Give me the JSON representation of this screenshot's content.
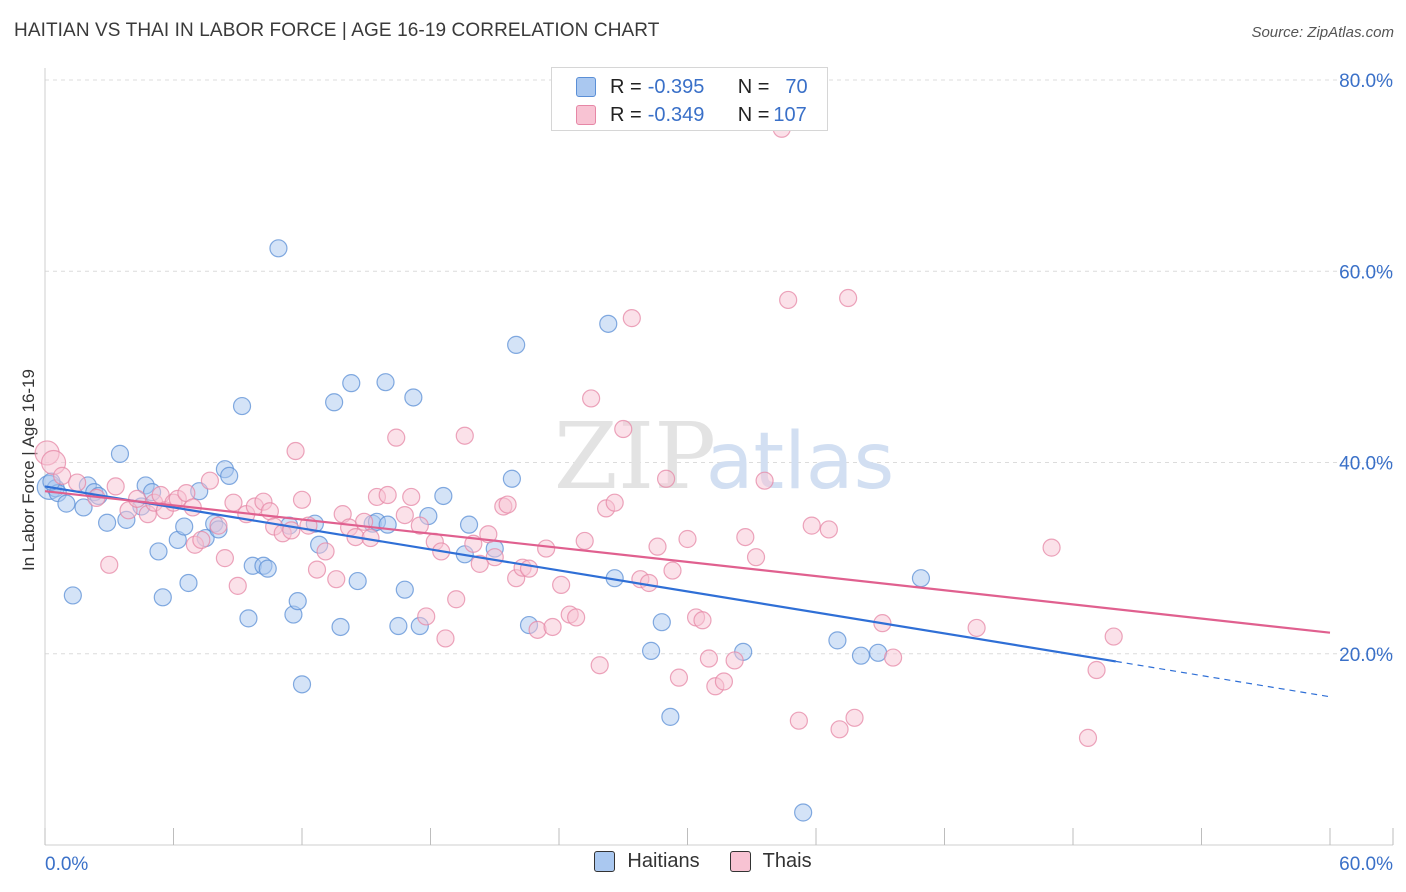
{
  "header": {
    "title": "HAITIAN VS THAI IN LABOR FORCE | AGE 16-19 CORRELATION CHART",
    "source": "Source: ZipAtlas.com"
  },
  "watermark": {
    "part1": "ZIP",
    "part2": "atlas"
  },
  "stats": {
    "rows": [
      {
        "r_label": "R = ",
        "r_value": "-0.395",
        "n_label": "N = ",
        "n_value": "70"
      },
      {
        "r_label": "R = ",
        "r_value": "-0.349",
        "n_label": "N = ",
        "n_value": "107"
      }
    ]
  },
  "legend": {
    "haitians": "Haitians",
    "thais": "Thais"
  },
  "colors": {
    "haitians_fill": "#aac8f0",
    "haitians_stroke": "#5b8fd6",
    "haitians_line": "#2f6fd6",
    "thais_fill": "#f8c3d3",
    "thais_stroke": "#e687a6",
    "thais_line": "#e0608f",
    "tick_label": "#3a70c8",
    "grid": "#dcdcdc"
  },
  "chart_data": {
    "type": "scatter",
    "title": "HAITIAN VS THAI IN LABOR FORCE | AGE 16-19 CORRELATION CHART",
    "xlabel": "",
    "ylabel": "In Labor Force | Age 16-19",
    "xlim": [
      0,
      60
    ],
    "ylim": [
      0,
      80
    ],
    "x_tick_labels": [
      "0.0%",
      "60.0%"
    ],
    "y_tick_labels": [
      "20.0%",
      "40.0%",
      "60.0%",
      "80.0%"
    ],
    "y_ticks": [
      20,
      40,
      60,
      80
    ],
    "series": [
      {
        "name": "Haitians",
        "r": -0.395,
        "n": 70,
        "trend": {
          "x_start": 0,
          "y_start": 37.5,
          "x_end": 50,
          "y_end": 19.2,
          "dashed_to_x": 60,
          "dashed_to_y": 15.5
        },
        "points": [
          [
            0.2,
            37.4
          ],
          [
            0.5,
            37.3
          ],
          [
            0.6,
            36.8
          ],
          [
            1.0,
            35.7
          ],
          [
            1.3,
            26.1
          ],
          [
            1.8,
            35.3
          ],
          [
            2.0,
            37.6
          ],
          [
            2.3,
            36.9
          ],
          [
            2.9,
            33.7
          ],
          [
            3.5,
            40.9
          ],
          [
            3.8,
            34.0
          ],
          [
            4.5,
            35.4
          ],
          [
            4.7,
            37.6
          ],
          [
            5.0,
            36.9
          ],
          [
            5.3,
            30.7
          ],
          [
            5.5,
            25.9
          ],
          [
            6.2,
            31.9
          ],
          [
            6.5,
            33.3
          ],
          [
            6.7,
            27.4
          ],
          [
            7.2,
            37.0
          ],
          [
            7.5,
            32.1
          ],
          [
            7.9,
            33.6
          ],
          [
            8.1,
            33.0
          ],
          [
            8.4,
            39.3
          ],
          [
            8.6,
            38.6
          ],
          [
            9.2,
            45.9
          ],
          [
            9.5,
            23.7
          ],
          [
            9.7,
            29.2
          ],
          [
            10.2,
            29.2
          ],
          [
            10.4,
            28.9
          ],
          [
            10.9,
            62.4
          ],
          [
            11.4,
            33.4
          ],
          [
            11.6,
            24.1
          ],
          [
            11.8,
            25.5
          ],
          [
            12.0,
            16.8
          ],
          [
            12.6,
            33.6
          ],
          [
            12.8,
            31.4
          ],
          [
            13.5,
            46.3
          ],
          [
            13.8,
            22.8
          ],
          [
            14.3,
            48.3
          ],
          [
            14.6,
            27.6
          ],
          [
            15.3,
            33.6
          ],
          [
            15.5,
            33.8
          ],
          [
            16.0,
            33.5
          ],
          [
            15.9,
            48.4
          ],
          [
            16.5,
            22.9
          ],
          [
            16.8,
            26.7
          ],
          [
            17.2,
            46.8
          ],
          [
            17.5,
            22.9
          ],
          [
            17.9,
            34.4
          ],
          [
            18.6,
            36.5
          ],
          [
            19.6,
            30.4
          ],
          [
            19.8,
            33.5
          ],
          [
            21.0,
            31.0
          ],
          [
            21.8,
            38.3
          ],
          [
            22.0,
            52.3
          ],
          [
            22.6,
            23.0
          ],
          [
            26.3,
            54.5
          ],
          [
            26.6,
            27.9
          ],
          [
            28.3,
            20.3
          ],
          [
            28.8,
            23.3
          ],
          [
            29.2,
            13.4
          ],
          [
            32.6,
            20.2
          ],
          [
            35.4,
            3.4
          ],
          [
            37.0,
            21.4
          ],
          [
            38.1,
            19.8
          ],
          [
            38.9,
            20.1
          ],
          [
            40.9,
            27.9
          ],
          [
            0.3,
            38.0
          ],
          [
            2.5,
            36.5
          ]
        ]
      },
      {
        "name": "Thais",
        "r": -0.349,
        "n": 107,
        "trend": {
          "x_start": 0,
          "y_start": 37.0,
          "x_end": 60,
          "y_end": 22.2
        },
        "points": [
          [
            0.1,
            41.0
          ],
          [
            0.4,
            40.0
          ],
          [
            0.8,
            38.6
          ],
          [
            1.5,
            37.9
          ],
          [
            2.4,
            36.3
          ],
          [
            3.0,
            29.3
          ],
          [
            3.3,
            37.5
          ],
          [
            3.9,
            35.0
          ],
          [
            4.3,
            36.2
          ],
          [
            4.8,
            34.6
          ],
          [
            5.1,
            35.8
          ],
          [
            5.4,
            36.6
          ],
          [
            5.6,
            35.0
          ],
          [
            6.0,
            35.8
          ],
          [
            6.2,
            36.2
          ],
          [
            6.6,
            36.8
          ],
          [
            6.9,
            35.3
          ],
          [
            7.0,
            31.4
          ],
          [
            7.3,
            31.9
          ],
          [
            7.7,
            38.1
          ],
          [
            8.1,
            33.4
          ],
          [
            8.4,
            30.0
          ],
          [
            8.8,
            35.8
          ],
          [
            9.0,
            27.1
          ],
          [
            9.4,
            34.6
          ],
          [
            9.8,
            35.4
          ],
          [
            10.2,
            35.9
          ],
          [
            10.5,
            34.9
          ],
          [
            10.7,
            33.3
          ],
          [
            11.1,
            32.6
          ],
          [
            11.5,
            32.9
          ],
          [
            11.7,
            41.2
          ],
          [
            12.0,
            36.1
          ],
          [
            12.3,
            33.4
          ],
          [
            12.7,
            28.8
          ],
          [
            13.1,
            30.7
          ],
          [
            13.6,
            27.8
          ],
          [
            13.9,
            34.6
          ],
          [
            14.2,
            33.2
          ],
          [
            14.5,
            32.2
          ],
          [
            14.9,
            33.8
          ],
          [
            15.2,
            32.1
          ],
          [
            15.5,
            36.4
          ],
          [
            16.0,
            36.6
          ],
          [
            16.4,
            42.6
          ],
          [
            16.8,
            34.5
          ],
          [
            17.1,
            36.4
          ],
          [
            17.5,
            33.4
          ],
          [
            17.8,
            23.9
          ],
          [
            18.2,
            31.7
          ],
          [
            18.5,
            30.7
          ],
          [
            18.7,
            21.6
          ],
          [
            19.2,
            25.7
          ],
          [
            19.6,
            42.8
          ],
          [
            20.0,
            31.5
          ],
          [
            20.3,
            29.4
          ],
          [
            20.7,
            32.5
          ],
          [
            21.0,
            30.1
          ],
          [
            21.4,
            35.4
          ],
          [
            21.6,
            35.6
          ],
          [
            22.0,
            27.9
          ],
          [
            22.3,
            29.0
          ],
          [
            22.6,
            28.9
          ],
          [
            23.0,
            22.5
          ],
          [
            23.4,
            31.0
          ],
          [
            23.7,
            22.8
          ],
          [
            24.1,
            27.2
          ],
          [
            24.5,
            24.1
          ],
          [
            24.8,
            23.8
          ],
          [
            25.2,
            31.8
          ],
          [
            25.5,
            46.7
          ],
          [
            25.9,
            18.8
          ],
          [
            26.2,
            35.2
          ],
          [
            26.6,
            35.8
          ],
          [
            27.0,
            43.5
          ],
          [
            27.4,
            55.1
          ],
          [
            27.8,
            27.8
          ],
          [
            28.2,
            27.4
          ],
          [
            28.6,
            31.2
          ],
          [
            29.0,
            38.3
          ],
          [
            29.3,
            28.7
          ],
          [
            29.6,
            17.5
          ],
          [
            30.0,
            32.0
          ],
          [
            30.4,
            23.8
          ],
          [
            30.7,
            23.5
          ],
          [
            31.0,
            19.5
          ],
          [
            31.3,
            16.6
          ],
          [
            31.7,
            17.1
          ],
          [
            32.2,
            19.3
          ],
          [
            32.7,
            32.2
          ],
          [
            33.2,
            30.1
          ],
          [
            33.6,
            38.1
          ],
          [
            34.4,
            74.9
          ],
          [
            34.7,
            57.0
          ],
          [
            35.2,
            13.0
          ],
          [
            35.8,
            33.4
          ],
          [
            36.6,
            33.0
          ],
          [
            37.1,
            12.1
          ],
          [
            37.5,
            57.2
          ],
          [
            37.8,
            13.3
          ],
          [
            39.1,
            23.2
          ],
          [
            39.6,
            19.6
          ],
          [
            43.5,
            22.7
          ],
          [
            47.0,
            31.1
          ],
          [
            48.7,
            11.2
          ],
          [
            49.1,
            18.3
          ],
          [
            49.9,
            21.8
          ]
        ]
      }
    ]
  }
}
